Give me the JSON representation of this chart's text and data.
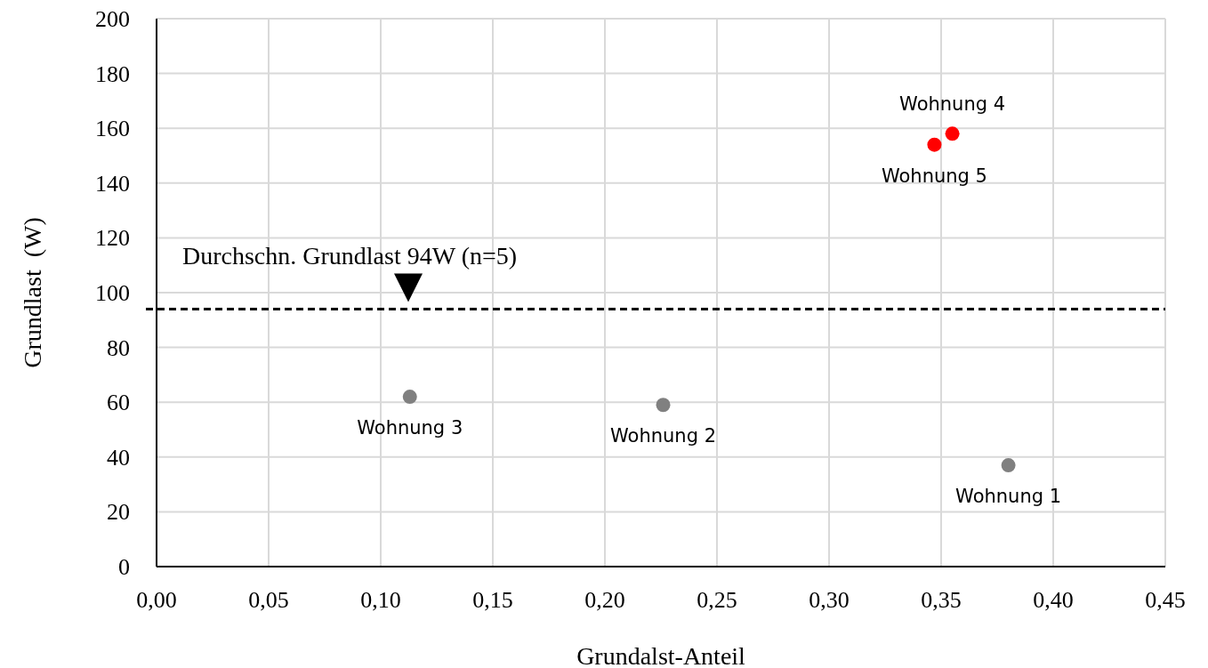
{
  "chart_data": {
    "type": "scatter",
    "xlabel": "Grundalst-Anteil",
    "ylabel": "Grundlast  (W)",
    "xlim": [
      0,
      0.45
    ],
    "xticks": [
      {
        "value": 0,
        "label": "0,00"
      },
      {
        "value": 0.05,
        "label": "0,05"
      },
      {
        "value": 0.1,
        "label": "0,10"
      },
      {
        "value": 0.15,
        "label": "0,15"
      },
      {
        "value": 0.2,
        "label": "0,20"
      },
      {
        "value": 0.25,
        "label": "0,25"
      },
      {
        "value": 0.3,
        "label": "0,30"
      },
      {
        "value": 0.35,
        "label": "0,35"
      },
      {
        "value": 0.4,
        "label": "0,40"
      },
      {
        "value": 0.45,
        "label": "0,45"
      }
    ],
    "ylim": [
      0,
      200
    ],
    "yticks": [
      0,
      20,
      40,
      60,
      80,
      100,
      120,
      140,
      160,
      180,
      200
    ],
    "series": [
      {
        "color": "#808080",
        "x": [
          0.38,
          0.226,
          0.113
        ],
        "values": [
          37,
          59,
          62
        ]
      },
      {
        "color": "#ff0000",
        "x": [
          0.355,
          0.347
        ],
        "values": [
          158,
          154
        ]
      }
    ],
    "annotations": [
      {
        "text": "Wohnung 1",
        "x": 0.38,
        "y": 37
      },
      {
        "text": "Wohnung 2",
        "x": 0.226,
        "y": 59
      },
      {
        "text": "Wohnung 3",
        "x": 0.113,
        "y": 62
      },
      {
        "text": "Wohnung 4",
        "x": 0.355,
        "y": 158
      },
      {
        "text": "Wohnung 5",
        "x": 0.347,
        "y": 154
      }
    ],
    "ref_lines": [
      {
        "axis": "y",
        "value": 94,
        "label": "Durchschn. Grundlast 94W (n=5)",
        "line_style": "dashed",
        "color": "#000000"
      }
    ],
    "grid": true,
    "marker": "circle"
  }
}
